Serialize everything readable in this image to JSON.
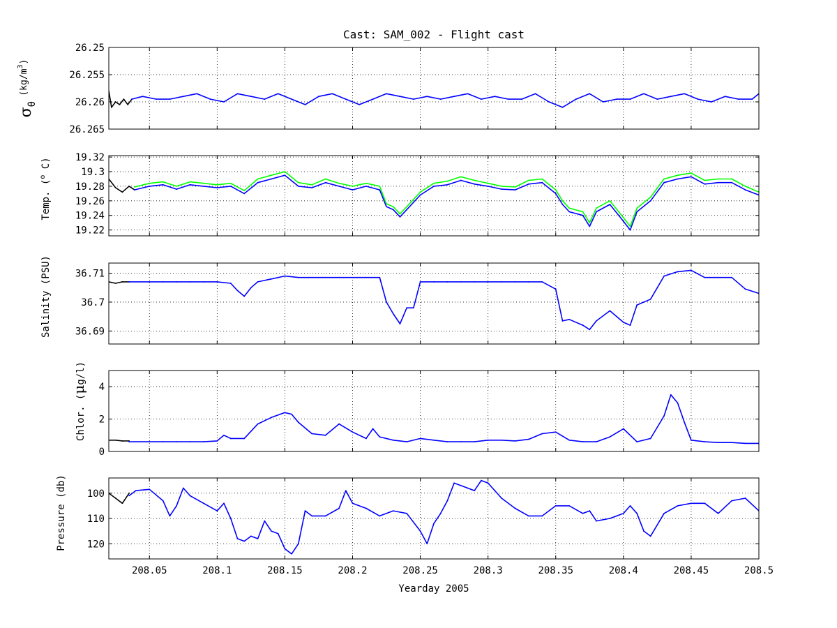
{
  "figure": {
    "title": "Cast: SAM_002 - Flight cast",
    "xlabel": "Yearday 2005"
  },
  "chart_data": [
    {
      "type": "line",
      "name": "sigma_theta",
      "ylabel_main": "σ",
      "ylabel_sub": "θ",
      "ylabel_units": "(kg/m",
      "ylabel_units_sup": "3",
      "ylabel_units_end": ")",
      "y_reversed": true,
      "ylim": [
        26.25,
        26.265
      ],
      "yticks": [
        26.25,
        26.255,
        26.26,
        26.265
      ],
      "ytick_labels": [
        "26.25",
        "26.255",
        "26.26",
        "26.265"
      ],
      "xlim": [
        208.02,
        208.5
      ],
      "grid": true,
      "series": [
        {
          "color": "#000000",
          "x": [
            208.02,
            208.022,
            208.025,
            208.028,
            208.031,
            208.034,
            208.037
          ],
          "y": [
            26.258,
            26.261,
            26.26,
            26.2605,
            26.2595,
            26.2605,
            26.2595
          ]
        },
        {
          "color": "#0000ff",
          "x": [
            208.037,
            208.045,
            208.055,
            208.065,
            208.075,
            208.085,
            208.095,
            208.105,
            208.115,
            208.125,
            208.135,
            208.145,
            208.155,
            208.165,
            208.175,
            208.185,
            208.195,
            208.205,
            208.215,
            208.225,
            208.235,
            208.245,
            208.255,
            208.265,
            208.275,
            208.285,
            208.295,
            208.305,
            208.315,
            208.325,
            208.335,
            208.345,
            208.355,
            208.365,
            208.375,
            208.385,
            208.395,
            208.405,
            208.415,
            208.425,
            208.435,
            208.445,
            208.455,
            208.465,
            208.475,
            208.485,
            208.495,
            208.5
          ],
          "y": [
            26.2595,
            26.259,
            26.2595,
            26.2595,
            26.259,
            26.2585,
            26.2595,
            26.26,
            26.2585,
            26.259,
            26.2595,
            26.2585,
            26.2595,
            26.2605,
            26.259,
            26.2585,
            26.2595,
            26.2605,
            26.2595,
            26.2585,
            26.259,
            26.2595,
            26.259,
            26.2595,
            26.259,
            26.2585,
            26.2595,
            26.259,
            26.2595,
            26.2595,
            26.2585,
            26.26,
            26.261,
            26.2595,
            26.2585,
            26.26,
            26.2595,
            26.2595,
            26.2585,
            26.2595,
            26.259,
            26.2585,
            26.2595,
            26.26,
            26.259,
            26.2595,
            26.2595,
            26.2585
          ]
        }
      ]
    },
    {
      "type": "line",
      "name": "temperature",
      "ylabel": "Temp. (",
      "ylabel_sup": "o",
      "ylabel_end": " C)",
      "ylim": [
        19.212,
        19.322
      ],
      "yticks": [
        19.22,
        19.24,
        19.26,
        19.28,
        19.3,
        19.32
      ],
      "ytick_labels": [
        "19.22",
        "19.24",
        "19.26",
        "19.28",
        "19.3",
        "19.32"
      ],
      "xlim": [
        208.02,
        208.5
      ],
      "grid": true,
      "series": [
        {
          "color": "#000000",
          "x": [
            208.02,
            208.025,
            208.03,
            208.035,
            208.039
          ],
          "y": [
            19.29,
            19.278,
            19.272,
            19.28,
            19.275
          ]
        },
        {
          "color": "#0000ff",
          "x": [
            208.039,
            208.05,
            208.06,
            208.07,
            208.08,
            208.09,
            208.1,
            208.11,
            208.12,
            208.13,
            208.14,
            208.15,
            208.16,
            208.17,
            208.18,
            208.19,
            208.2,
            208.21,
            208.22,
            208.225,
            208.23,
            208.235,
            208.24,
            208.25,
            208.26,
            208.27,
            208.28,
            208.29,
            208.3,
            208.31,
            208.32,
            208.33,
            208.34,
            208.35,
            208.355,
            208.36,
            208.37,
            208.375,
            208.38,
            208.39,
            208.4,
            208.405,
            208.41,
            208.42,
            208.43,
            208.44,
            208.45,
            208.46,
            208.47,
            208.48,
            208.49,
            208.5
          ],
          "y": [
            19.275,
            19.28,
            19.282,
            19.276,
            19.282,
            19.28,
            19.278,
            19.28,
            19.27,
            19.285,
            19.29,
            19.295,
            19.28,
            19.278,
            19.285,
            19.28,
            19.275,
            19.28,
            19.275,
            19.252,
            19.248,
            19.238,
            19.248,
            19.268,
            19.28,
            19.282,
            19.288,
            19.283,
            19.28,
            19.276,
            19.275,
            19.283,
            19.285,
            19.27,
            19.255,
            19.245,
            19.24,
            19.225,
            19.245,
            19.255,
            19.232,
            19.22,
            19.245,
            19.26,
            19.285,
            19.29,
            19.293,
            19.283,
            19.285,
            19.285,
            19.275,
            19.268
          ]
        },
        {
          "color": "#00ff00",
          "x": [
            208.039,
            208.05,
            208.06,
            208.07,
            208.08,
            208.09,
            208.1,
            208.11,
            208.12,
            208.13,
            208.14,
            208.15,
            208.16,
            208.17,
            208.18,
            208.19,
            208.2,
            208.21,
            208.22,
            208.225,
            208.23,
            208.235,
            208.24,
            208.25,
            208.26,
            208.27,
            208.28,
            208.29,
            208.3,
            208.31,
            208.32,
            208.33,
            208.34,
            208.35,
            208.355,
            208.36,
            208.37,
            208.375,
            208.38,
            208.39,
            208.4,
            208.405,
            208.41,
            208.42,
            208.43,
            208.44,
            208.45,
            208.46,
            208.47,
            208.48,
            208.49,
            208.5
          ],
          "y": [
            19.279,
            19.284,
            19.286,
            19.28,
            19.286,
            19.284,
            19.282,
            19.284,
            19.274,
            19.29,
            19.295,
            19.3,
            19.285,
            19.282,
            19.29,
            19.284,
            19.28,
            19.284,
            19.28,
            19.256,
            19.252,
            19.242,
            19.252,
            19.272,
            19.284,
            19.287,
            19.293,
            19.288,
            19.284,
            19.28,
            19.279,
            19.288,
            19.29,
            19.275,
            19.26,
            19.25,
            19.245,
            19.23,
            19.25,
            19.26,
            19.237,
            19.225,
            19.25,
            19.265,
            19.29,
            19.295,
            19.298,
            19.288,
            19.29,
            19.29,
            19.28,
            19.272
          ]
        }
      ]
    },
    {
      "type": "line",
      "name": "salinity",
      "ylabel": "Salinity (PSU)",
      "ylim": [
        36.6855,
        36.7135
      ],
      "yticks": [
        36.69,
        36.7,
        36.71
      ],
      "ytick_labels": [
        "36.69",
        "36.7",
        "36.71"
      ],
      "xlim": [
        208.02,
        208.5
      ],
      "grid": true,
      "series": [
        {
          "color": "#000000",
          "x": [
            208.02,
            208.025,
            208.03,
            208.035
          ],
          "y": [
            36.707,
            36.7065,
            36.707,
            36.707
          ]
        },
        {
          "color": "#0000ff",
          "x": [
            208.035,
            208.05,
            208.06,
            208.07,
            208.08,
            208.09,
            208.1,
            208.11,
            208.115,
            208.12,
            208.125,
            208.13,
            208.14,
            208.15,
            208.16,
            208.17,
            208.18,
            208.19,
            208.2,
            208.21,
            208.22,
            208.225,
            208.23,
            208.235,
            208.24,
            208.245,
            208.25,
            208.26,
            208.27,
            208.28,
            208.29,
            208.3,
            208.31,
            208.32,
            208.33,
            208.34,
            208.35,
            208.355,
            208.36,
            208.37,
            208.375,
            208.38,
            208.39,
            208.4,
            208.405,
            208.41,
            208.42,
            208.43,
            208.44,
            208.45,
            208.46,
            208.47,
            208.48,
            208.49,
            208.5
          ],
          "y": [
            36.707,
            36.707,
            36.707,
            36.707,
            36.707,
            36.707,
            36.707,
            36.7065,
            36.704,
            36.702,
            36.705,
            36.707,
            36.708,
            36.709,
            36.7085,
            36.7085,
            36.7085,
            36.7085,
            36.7085,
            36.7085,
            36.7085,
            36.7,
            36.696,
            36.6925,
            36.698,
            36.698,
            36.707,
            36.707,
            36.707,
            36.707,
            36.707,
            36.707,
            36.707,
            36.707,
            36.707,
            36.707,
            36.7045,
            36.6935,
            36.694,
            36.692,
            36.6905,
            36.6935,
            36.697,
            36.693,
            36.692,
            36.699,
            36.701,
            36.709,
            36.7105,
            36.711,
            36.7085,
            36.7085,
            36.7085,
            36.7045,
            36.703
          ]
        }
      ]
    },
    {
      "type": "line",
      "name": "chlorophyll",
      "ylabel": "Chlor. (",
      "ylabel_mu": "μ",
      "ylabel_end": "g/l)",
      "ylim": [
        0,
        5
      ],
      "yticks": [
        0,
        2,
        4
      ],
      "ytick_labels": [
        "0",
        "2",
        "4"
      ],
      "xlim": [
        208.02,
        208.5
      ],
      "grid": true,
      "series": [
        {
          "color": "#000000",
          "x": [
            208.02,
            208.025,
            208.03,
            208.035
          ],
          "y": [
            0.7,
            0.7,
            0.65,
            0.65
          ]
        },
        {
          "color": "#0000ff",
          "x": [
            208.035,
            208.05,
            208.06,
            208.07,
            208.08,
            208.09,
            208.1,
            208.105,
            208.11,
            208.12,
            208.13,
            208.14,
            208.15,
            208.155,
            208.16,
            208.17,
            208.18,
            208.19,
            208.2,
            208.21,
            208.215,
            208.22,
            208.23,
            208.24,
            208.25,
            208.26,
            208.27,
            208.28,
            208.29,
            208.3,
            208.31,
            208.32,
            208.33,
            208.34,
            208.35,
            208.36,
            208.37,
            208.38,
            208.39,
            208.4,
            208.41,
            208.42,
            208.43,
            208.435,
            208.44,
            208.445,
            208.45,
            208.46,
            208.47,
            208.48,
            208.49,
            208.5
          ],
          "y": [
            0.6,
            0.6,
            0.6,
            0.6,
            0.6,
            0.6,
            0.65,
            1.0,
            0.8,
            0.8,
            1.7,
            2.1,
            2.4,
            2.3,
            1.8,
            1.1,
            1.0,
            1.7,
            1.2,
            0.8,
            1.4,
            0.9,
            0.7,
            0.6,
            0.8,
            0.7,
            0.6,
            0.6,
            0.6,
            0.7,
            0.7,
            0.65,
            0.75,
            1.1,
            1.2,
            0.7,
            0.6,
            0.6,
            0.9,
            1.4,
            0.6,
            0.8,
            2.2,
            3.5,
            3.0,
            1.8,
            0.7,
            0.6,
            0.55,
            0.55,
            0.5,
            0.5
          ]
        }
      ]
    },
    {
      "type": "line",
      "name": "pressure",
      "ylabel": "Pressure (db)",
      "y_reversed": true,
      "ylim": [
        94,
        126
      ],
      "yticks": [
        100,
        110,
        120
      ],
      "ytick_labels": [
        "100",
        "110",
        "120"
      ],
      "xlim": [
        208.02,
        208.5
      ],
      "xticks": [
        208.05,
        208.1,
        208.15,
        208.2,
        208.25,
        208.3,
        208.35,
        208.4,
        208.45,
        208.5
      ],
      "xtick_labels": [
        "208.05",
        "208.1",
        "208.15",
        "208.2",
        "208.25",
        "208.3",
        "208.35",
        "208.4",
        "208.45",
        "208.5"
      ],
      "grid": true,
      "series": [
        {
          "color": "#000000",
          "x": [
            208.02,
            208.025,
            208.03,
            208.035
          ],
          "y": [
            100,
            102,
            104,
            100
          ]
        },
        {
          "color": "#0000ff",
          "x": [
            208.035,
            208.04,
            208.05,
            208.06,
            208.065,
            208.07,
            208.075,
            208.08,
            208.09,
            208.1,
            208.105,
            208.11,
            208.115,
            208.12,
            208.125,
            208.13,
            208.135,
            208.14,
            208.145,
            208.15,
            208.155,
            208.16,
            208.165,
            208.17,
            208.18,
            208.19,
            208.195,
            208.2,
            208.21,
            208.22,
            208.23,
            208.24,
            208.25,
            208.255,
            208.26,
            208.265,
            208.27,
            208.275,
            208.28,
            208.285,
            208.29,
            208.295,
            208.3,
            208.305,
            208.31,
            208.32,
            208.33,
            208.34,
            208.35,
            208.36,
            208.37,
            208.375,
            208.38,
            208.39,
            208.4,
            208.405,
            208.41,
            208.415,
            208.42,
            208.43,
            208.44,
            208.45,
            208.46,
            208.47,
            208.48,
            208.49,
            208.5
          ],
          "y": [
            101,
            99,
            98.5,
            103,
            109,
            105,
            98,
            101,
            104,
            107,
            104,
            110,
            118,
            119,
            117,
            118,
            111,
            115,
            116,
            122,
            124,
            120,
            107,
            109,
            109,
            106,
            99,
            104,
            106,
            109,
            107,
            108,
            115,
            120,
            112,
            108,
            103,
            96,
            97,
            98,
            99,
            95,
            96,
            99,
            102,
            106,
            109,
            109,
            105,
            105,
            108,
            107,
            111,
            110,
            108,
            105,
            108,
            115,
            117,
            108,
            105,
            104,
            104,
            108,
            103,
            102,
            107
          ]
        }
      ]
    }
  ]
}
